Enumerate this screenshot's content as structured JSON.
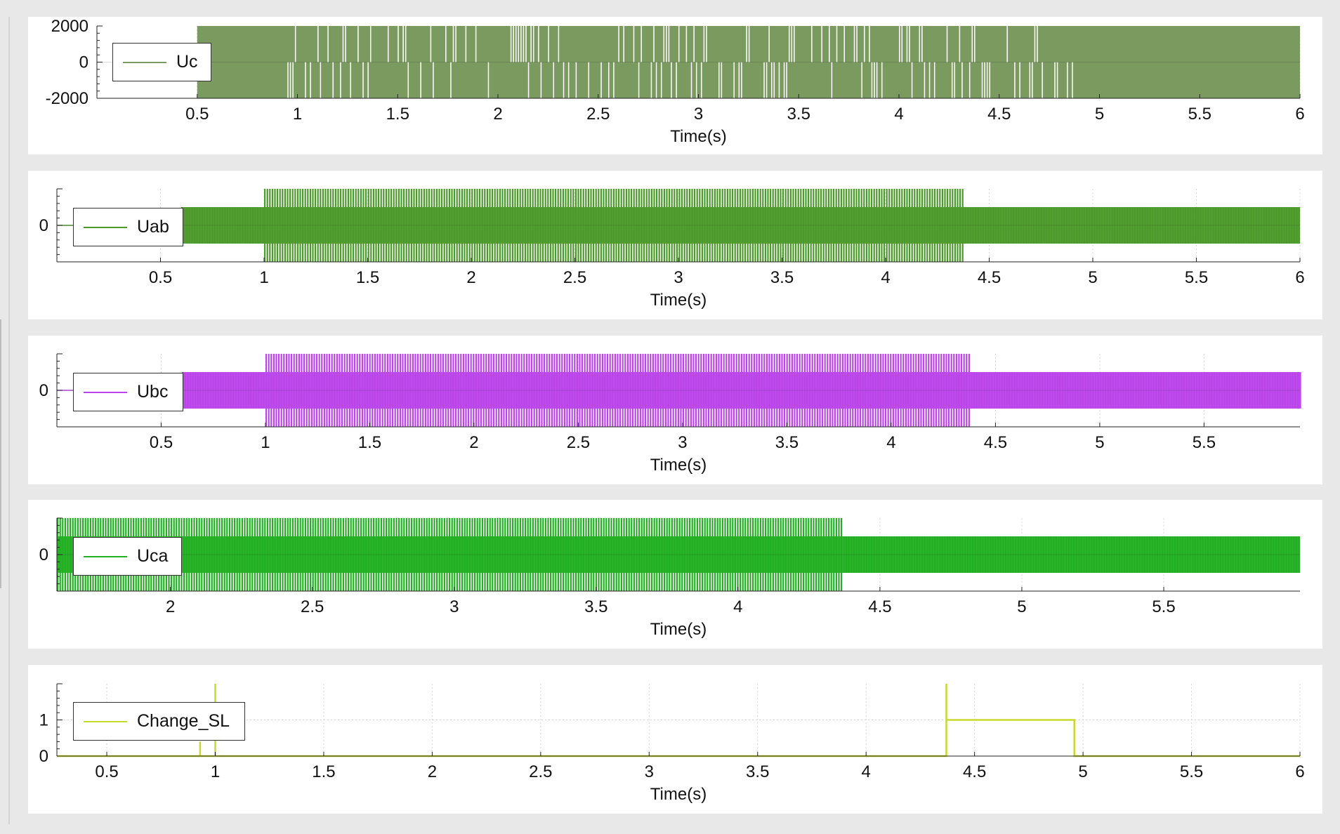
{
  "chart_data": [
    {
      "type": "line",
      "series": [
        {
          "name": "Uc",
          "color": "#7a9a5f"
        }
      ],
      "xlabel": "Time(s)",
      "xlim": [
        0.0,
        6.0
      ],
      "ylim": [
        -2000,
        2000
      ],
      "xticks": [
        "0.5",
        "1",
        "1.5",
        "2",
        "2.5",
        "3",
        "3.5",
        "4",
        "4.5",
        "5",
        "5.5",
        "6"
      ],
      "yticks": [
        "2000",
        "0",
        "-2000"
      ],
      "signal": {
        "style": "pwm",
        "start": 0.5,
        "end": 6.0,
        "amplitude": 2000,
        "phases": [
          [
            0.5,
            0.95,
            "solid"
          ],
          [
            0.95,
            4.9,
            "switching"
          ],
          [
            4.9,
            6.0,
            "solid"
          ]
        ]
      }
    },
    {
      "type": "line",
      "series": [
        {
          "name": "Uab",
          "color": "#4c9a2a"
        }
      ],
      "xlabel": "Time(s)",
      "xlim": [
        0.0,
        6.0
      ],
      "xticks": [
        "0.5",
        "1",
        "1.5",
        "2",
        "2.5",
        "3",
        "3.5",
        "4",
        "4.5",
        "5",
        "5.5",
        "6"
      ],
      "yticks": [
        "0"
      ],
      "signal": {
        "style": "pwm",
        "start": 0.6,
        "end": 6.0,
        "levels": [
          [
            0.6,
            1.0,
            0.5
          ],
          [
            1.0,
            4.37,
            1.0
          ],
          [
            4.37,
            6.0,
            0.5
          ]
        ]
      }
    },
    {
      "type": "line",
      "series": [
        {
          "name": "Ubc",
          "color": "#bb45ea"
        }
      ],
      "xlabel": "Time(s)",
      "xlim": [
        0.0,
        5.96
      ],
      "xticks": [
        "0.5",
        "1",
        "1.5",
        "2",
        "2.5",
        "3",
        "3.5",
        "4",
        "4.5",
        "5",
        "5.5"
      ],
      "yticks": [
        "0"
      ],
      "signal": {
        "style": "pwm",
        "start": 0.6,
        "end": 5.96,
        "levels": [
          [
            0.6,
            1.0,
            0.5
          ],
          [
            1.0,
            4.37,
            1.0
          ],
          [
            4.37,
            5.96,
            0.5
          ]
        ]
      }
    },
    {
      "type": "line",
      "series": [
        {
          "name": "Uca",
          "color": "#22b022"
        }
      ],
      "xlabel": "Time(s)",
      "xlim": [
        1.6,
        5.98
      ],
      "xticks": [
        "2",
        "2.5",
        "3",
        "3.5",
        "4",
        "4.5",
        "5",
        "5.5"
      ],
      "yticks": [
        "0"
      ],
      "signal": {
        "style": "pwm",
        "start": 1.6,
        "end": 5.98,
        "levels": [
          [
            1.6,
            4.37,
            1.0
          ],
          [
            4.37,
            5.98,
            0.5
          ]
        ]
      }
    },
    {
      "type": "line",
      "series": [
        {
          "name": "Change_SL",
          "color": "#c8d92e"
        }
      ],
      "xlabel": "Time(s)",
      "xlim": [
        0.27,
        6.0
      ],
      "ylim": [
        0,
        2
      ],
      "xticks": [
        "0.5",
        "1",
        "1.5",
        "2",
        "2.5",
        "3",
        "3.5",
        "4",
        "4.5",
        "5",
        "5.5",
        "6"
      ],
      "yticks": [
        "1",
        "0"
      ],
      "x": [
        0.27,
        0.93,
        0.93,
        0.93,
        1.0,
        1.0,
        1.0,
        4.37,
        4.37,
        4.37,
        4.96,
        4.96,
        6.0
      ],
      "y": [
        0,
        0,
        0.4,
        0,
        0,
        2,
        0,
        0,
        2,
        1,
        1,
        0,
        0
      ]
    }
  ]
}
